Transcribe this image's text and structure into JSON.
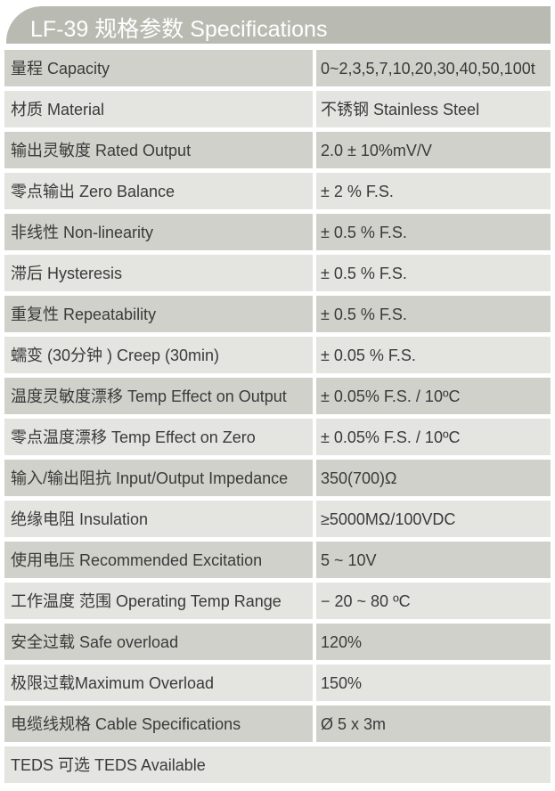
{
  "title": "LF-39 规格参数 Specifications",
  "colors": {
    "header": "#b9bbb2",
    "row_dark": "#d1d1cb",
    "row_light": "#e4e5e0"
  },
  "rows": [
    {
      "label": "量程 Capacity",
      "value": "0~2,3,5,7,10,20,30,40,50,100t"
    },
    {
      "label": "材质 Material",
      "value": "不锈钢 Stainless Steel"
    },
    {
      "label": "输出灵敏度 Rated Output",
      "value": "2.0 ± 10%mV/V"
    },
    {
      "label": "零点输出  Zero Balance",
      "value": " ± 2 % F.S."
    },
    {
      "label": "非线性 Non-linearity",
      "value": " ± 0.5 % F.S."
    },
    {
      "label": "滞后 Hysteresis",
      "value": " ± 0.5 % F.S."
    },
    {
      "label": "重复性 Repeatability",
      "value": " ± 0.5 % F.S."
    },
    {
      "label": "蠕变 (30分钟 ) Creep (30min)",
      "value": " ± 0.05 % F.S."
    },
    {
      "label": "温度灵敏度漂移 Temp Effect on Output",
      "value": " ± 0.05% F.S. / 10ºC"
    },
    {
      "label": "零点温度漂移 Temp Effect on Zero",
      "value": " ± 0.05% F.S. / 10ºC"
    },
    {
      "label": "输入/输出阻抗 Input/Output Impedance",
      "value": " 350(700)Ω"
    },
    {
      "label": "绝缘电阻  Insulation",
      "value": "≥5000MΩ/100VDC"
    },
    {
      "label": "使用电压 Recommended Excitation",
      "value": "5 ~ 10V"
    },
    {
      "label": "工作温度 范围 Operating Temp  Range",
      "value": "− 20 ~ 80 ºC"
    },
    {
      "label": "安全过载 Safe overload",
      "value": "120%"
    },
    {
      "label": "极限过载Maximum Overload",
      "value": "150%"
    },
    {
      "label": "电缆线规格 Cable Specifications",
      "value": "Ø  5 x 3m"
    },
    {
      "label": "TEDS 可选 TEDS Available"
    }
  ]
}
